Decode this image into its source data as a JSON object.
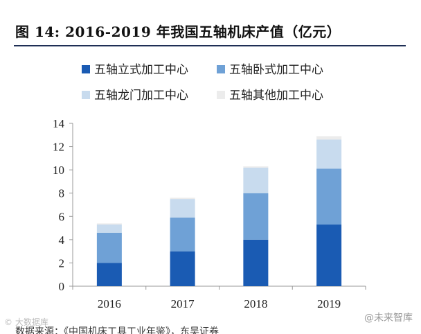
{
  "figure": {
    "title": "图  14:    2016-2019 年我国五轴机床产值（亿元）"
  },
  "watermarks": {
    "left": "© 大数据库",
    "right": "@未来智库"
  },
  "source": "数据来源：《中国机床工具工业年鉴》，东吴证券",
  "colors": {
    "s1": "#1a5bb3",
    "s2": "#6fa1d6",
    "s3": "#c8dbee",
    "s4": "#ececec"
  },
  "chart_data": {
    "type": "bar",
    "stacked": true,
    "categories": [
      "2016",
      "2017",
      "2018",
      "2019"
    ],
    "series": [
      {
        "name": "五轴立式加工中心",
        "values": [
          2.0,
          3.0,
          4.0,
          5.3
        ]
      },
      {
        "name": "五轴卧式加工中心",
        "values": [
          2.6,
          2.9,
          4.0,
          4.8
        ]
      },
      {
        "name": "五轴龙门加工中心",
        "values": [
          0.7,
          1.6,
          2.2,
          2.5
        ]
      },
      {
        "name": "五轴其他加工中心",
        "values": [
          0.1,
          0.1,
          0.1,
          0.3
        ]
      }
    ],
    "ylim": [
      0,
      14
    ],
    "yticks": [
      0,
      2,
      4,
      6,
      8,
      10,
      12,
      14
    ],
    "grid": false,
    "legend": "top"
  }
}
